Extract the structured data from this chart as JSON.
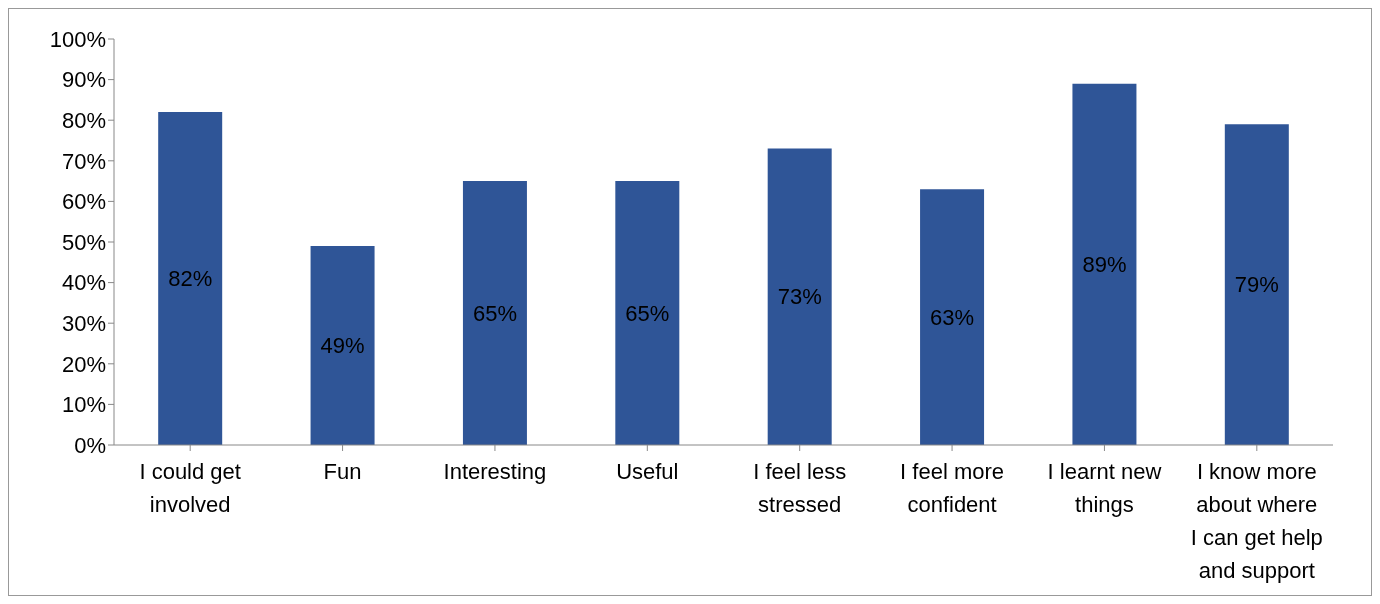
{
  "chart_data": {
    "type": "bar",
    "categories": [
      "I could get involved",
      "Fun",
      "Interesting",
      "Useful",
      "I feel less stressed",
      "I feel more confident",
      "I learnt new things",
      "I know more about where I can get help and support"
    ],
    "values": [
      82,
      49,
      65,
      65,
      73,
      63,
      89,
      79
    ],
    "value_labels": [
      "82%",
      "49%",
      "65%",
      "65%",
      "73%",
      "63%",
      "89%",
      "79%"
    ],
    "color": "#2f5597",
    "ylim": [
      0,
      100
    ],
    "yticks": [
      {
        "value": 0,
        "label": "0%"
      },
      {
        "value": 10,
        "label": "10%"
      },
      {
        "value": 20,
        "label": "20%"
      },
      {
        "value": 30,
        "label": "30%"
      },
      {
        "value": 40,
        "label": "40%"
      },
      {
        "value": 50,
        "label": "50%"
      },
      {
        "value": 60,
        "label": "60%"
      },
      {
        "value": 70,
        "label": "70%"
      },
      {
        "value": 80,
        "label": "80%"
      },
      {
        "value": 90,
        "label": "90%"
      },
      {
        "value": 100,
        "label": "100%"
      }
    ],
    "grid": false,
    "legend": false
  }
}
